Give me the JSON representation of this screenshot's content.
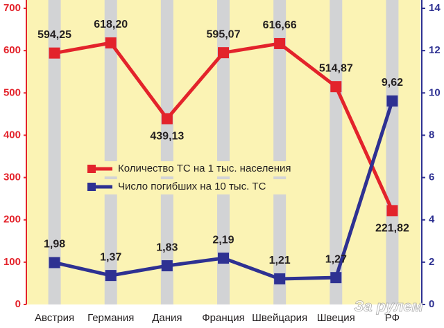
{
  "chart_data": {
    "type": "line",
    "categories": [
      "Австрия",
      "Германия",
      "Дания",
      "Франция",
      "Швейцария",
      "Швеция",
      "РФ"
    ],
    "series": [
      {
        "name": "Количество ТС на 1 тыс. населения",
        "color": "#e3232b",
        "axis": "y",
        "values": [
          594.25,
          618.2,
          439.13,
          595.07,
          616.66,
          514.87,
          221.82
        ],
        "value_labels": [
          "594,25",
          "618,20",
          "439,13",
          "595,07",
          "616,66",
          "514,87",
          "221,82"
        ]
      },
      {
        "name": "Число погибших на 10 тыс. ТС",
        "color": "#2e3192",
        "axis": "y2",
        "values": [
          1.98,
          1.37,
          1.83,
          2.19,
          1.21,
          1.27,
          9.62
        ],
        "value_labels": [
          "1,98",
          "1,37",
          "1,83",
          "2,19",
          "1,21",
          "1,27",
          "9,62"
        ]
      }
    ],
    "ylim": [
      0,
      700
    ],
    "yticks": [
      0,
      100,
      200,
      300,
      400,
      500,
      600,
      700
    ],
    "ycolor": "#e3232b",
    "y2lim": [
      0,
      14
    ],
    "y2ticks": [
      0,
      2,
      4,
      6,
      8,
      10,
      12,
      14
    ],
    "y2color": "#2e3192",
    "legend": "center",
    "watermark": "За рулем"
  }
}
